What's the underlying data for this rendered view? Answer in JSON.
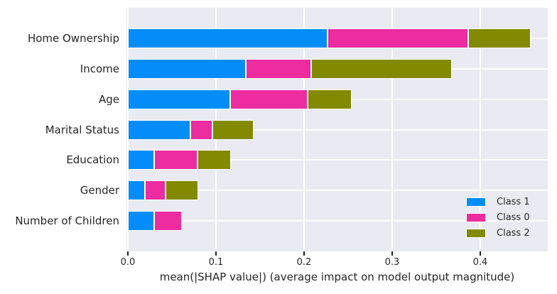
{
  "chart_data": {
    "type": "bar",
    "orientation": "horizontal",
    "stacked": true,
    "title": "",
    "xlabel": "mean(|SHAP value|) (average impact on model output magnitude)",
    "ylabel": "",
    "categories": [
      "Home Ownership",
      "Income",
      "Age",
      "Marital Status",
      "Education",
      "Gender",
      "Number of Children"
    ],
    "series": [
      {
        "name": "Class 1",
        "color": "#048df8",
        "values": [
          0.227,
          0.134,
          0.116,
          0.071,
          0.03,
          0.019,
          0.03
        ]
      },
      {
        "name": "Class 0",
        "color": "#ec2c9f",
        "values": [
          0.159,
          0.074,
          0.088,
          0.025,
          0.049,
          0.024,
          0.031
        ]
      },
      {
        "name": "Class 2",
        "color": "#828a02",
        "values": [
          0.071,
          0.16,
          0.05,
          0.047,
          0.038,
          0.037,
          0.0
        ]
      }
    ],
    "xticks": {
      "values": [
        0.0,
        0.1,
        0.2,
        0.3,
        0.4
      ],
      "labels": [
        "0.0",
        "0.1",
        "0.2",
        "0.3",
        "0.4"
      ]
    },
    "xlim": [
      0,
      0.477
    ],
    "grid": true,
    "legend": {
      "position": "lower right",
      "entries": [
        "Class 1",
        "Class 0",
        "Class 2"
      ]
    },
    "colors": {
      "plot_background": "#eaeaf2",
      "gridline": "#ffffff",
      "text": "#262626",
      "bar_edge": "#ffffff"
    }
  }
}
